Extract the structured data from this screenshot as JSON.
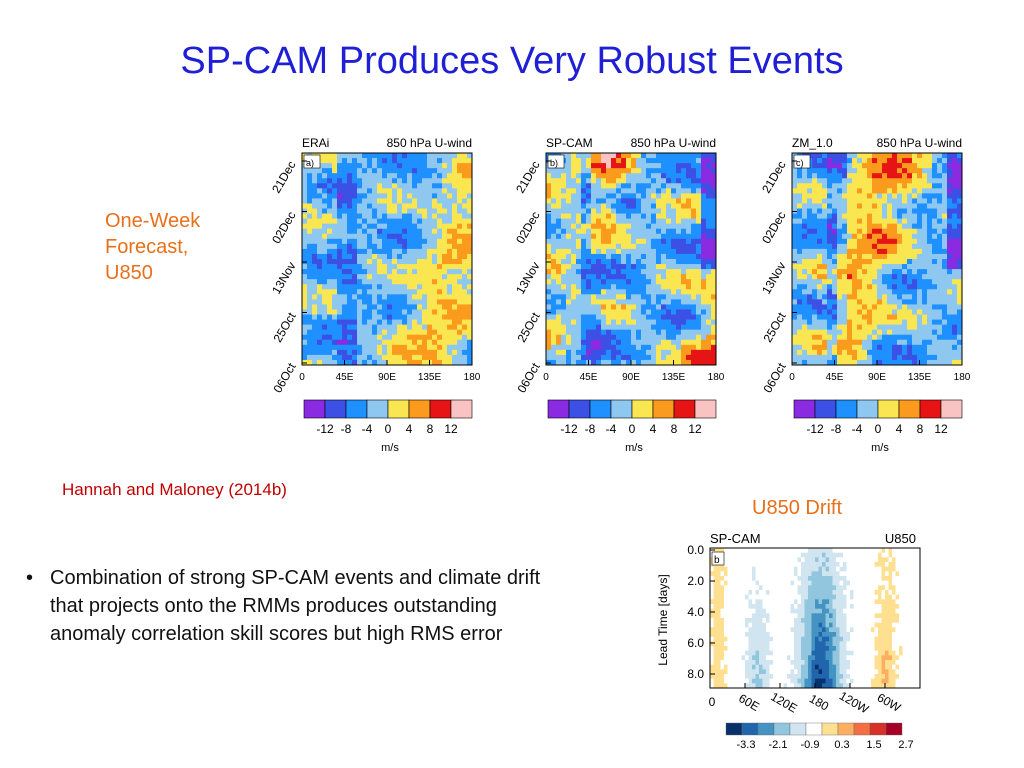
{
  "slide": {
    "title": "SP-CAM Produces Very Robust Events",
    "side_label": [
      "One-Week",
      "Forecast,",
      "U850"
    ],
    "citation": "Hannah and Maloney (2014b)",
    "drift_title": "U850 Drift",
    "bullets": [
      "Combination of strong SP-CAM events and climate drift that projects onto the RMMs produces outstanding anomaly correlation skill scores but high RMS error"
    ]
  },
  "chart_data": [
    {
      "type": "heatmap",
      "panel_label": "a)",
      "model": "ERAi",
      "title": "850 hPa U-wind",
      "x_ticks": [
        "0",
        "45E",
        "90E",
        "135E",
        "180"
      ],
      "y_ticks": [
        "06Oct",
        "25Oct",
        "13Nov",
        "02Dec",
        "21Dec"
      ],
      "colorbar": {
        "levels": [
          "-12",
          "-8",
          "-4",
          "0",
          "4",
          "8",
          "12"
        ],
        "unit": "m/s",
        "colors": [
          "#8a2be2",
          "#3c50e6",
          "#1e90ff",
          "#8ec8f0",
          "#fae650",
          "#fa9b1e",
          "#e61414",
          "#fac3c3"
        ]
      },
      "seed": 11,
      "intensity": 0.75
    },
    {
      "type": "heatmap",
      "panel_label": "b)",
      "model": "SP-CAM",
      "title": "850 hPa U-wind",
      "x_ticks": [
        "0",
        "45E",
        "90E",
        "135E",
        "180"
      ],
      "y_ticks": [
        "06Oct",
        "25Oct",
        "13Nov",
        "02Dec",
        "21Dec"
      ],
      "colorbar": {
        "levels": [
          "-12",
          "-8",
          "-4",
          "0",
          "4",
          "8",
          "12"
        ],
        "unit": "m/s",
        "colors": [
          "#8a2be2",
          "#3c50e6",
          "#1e90ff",
          "#8ec8f0",
          "#fae650",
          "#fa9b1e",
          "#e61414",
          "#fac3c3"
        ]
      },
      "seed": 29,
      "intensity": 1.15
    },
    {
      "type": "heatmap",
      "panel_label": "c)",
      "model": "ZM_1.0",
      "title": "850 hPa U-wind",
      "x_ticks": [
        "0",
        "45E",
        "90E",
        "135E",
        "180"
      ],
      "y_ticks": [
        "06Oct",
        "25Oct",
        "13Nov",
        "02Dec",
        "21Dec"
      ],
      "colorbar": {
        "levels": [
          "-12",
          "-8",
          "-4",
          "0",
          "4",
          "8",
          "12"
        ],
        "unit": "m/s",
        "colors": [
          "#8a2be2",
          "#3c50e6",
          "#1e90ff",
          "#8ec8f0",
          "#fae650",
          "#fa9b1e",
          "#e61414",
          "#fac3c3"
        ]
      },
      "seed": 47,
      "intensity": 0.95
    },
    {
      "type": "heatmap",
      "panel_label": "b",
      "model": "SP-CAM",
      "title": "U850",
      "ylabel": "Lead Time [days]",
      "y_ticks": [
        "0.0",
        "2.0",
        "4.0",
        "6.0",
        "8.0"
      ],
      "x_ticks": [
        "0",
        "60E",
        "120E",
        "180",
        "120W",
        "60W"
      ],
      "colorbar": {
        "levels": [
          "-3.3",
          "-2.1",
          "-0.9",
          "0.3",
          "1.5",
          "2.7"
        ],
        "colors": [
          "#08306b",
          "#2166ac",
          "#4393c3",
          "#92c5de",
          "#d1e5f0",
          "#ffffff",
          "#fee090",
          "#fdae61",
          "#f46d43",
          "#d73027",
          "#a50026"
        ]
      }
    }
  ]
}
